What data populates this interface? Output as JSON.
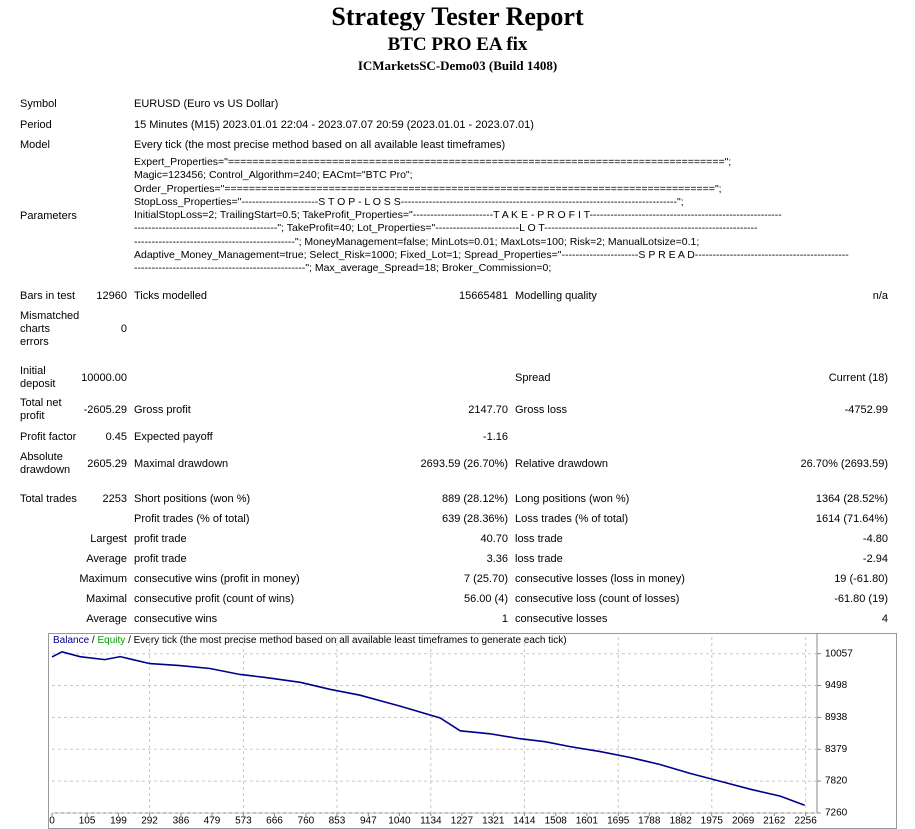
{
  "header": {
    "title": "Strategy Tester Report",
    "subtitle": "BTC PRO EA fix",
    "server": "ICMarketsSC-Demo03 (Build 1408)"
  },
  "info": [
    [
      "Symbol",
      "EURUSD (Euro vs US Dollar)"
    ],
    [
      "Period",
      "15 Minutes (M15) 2023.01.01 22:04 - 2023.07.07 20:59 (2023.01.01 - 2023.07.01)"
    ],
    [
      "Model",
      "Every tick (the most precise method based on all available least timeframes)"
    ]
  ],
  "parameters": {
    "label": "Parameters",
    "lines": [
      "Expert_Properties=\"=================================================================================\";",
      "Magic=123456; Control_Algorithm=240; EACmt=\"BTC Pro\";",
      "Order_Properties=\"================================================================================\";",
      "StopLoss_Properties=\"----------------------S T O P - L O S S-------------------------------------------------------------------------------\";",
      "InitialStopLoss=2; TrailingStart=0.5; TakeProfit_Properties=\"-----------------------T A K E - P R O F I T-------------------------------------------------------",
      "-----------------------------------------\"; TakeProfit=40; Lot_Properties=\"------------------------L O T-------------------------------------------------------------",
      "----------------------------------------------\"; MoneyManagement=false; MinLots=0.01; MaxLots=100; Risk=2; ManualLotsize=0.1;",
      "Adaptive_Money_Management=true; Select_Risk=1000; Fixed_Lot=1; Spread_Properties=\"----------------------S P R E A D--------------------------------------------",
      "-------------------------------------------------\"; Max_average_Spread=18; Broker_Commission=0;"
    ]
  },
  "summary": [
    [
      "Bars in test",
      "12960",
      "Ticks modelled",
      "15665481",
      "Modelling quality",
      "n/a"
    ],
    [
      [
        "Mismatched",
        "charts",
        "errors"
      ],
      "0",
      null,
      null,
      null,
      null
    ],
    [
      [
        "Initial",
        "deposit"
      ],
      "10000.00",
      null,
      null,
      "Spread",
      "Current (18)"
    ],
    [
      [
        "Total net",
        "profit"
      ],
      "-2605.29",
      "Gross profit",
      "2147.70",
      "Gross loss",
      "-4752.99"
    ],
    [
      "Profit factor",
      "0.45",
      "Expected payoff",
      "-1.16",
      null,
      null
    ],
    [
      [
        "Absolute",
        "drawdown"
      ],
      "2605.29",
      "Maximal drawdown",
      "2693.59 (26.70%)",
      "Relative drawdown",
      "26.70% (2693.59)"
    ],
    [
      "Total trades",
      "2253",
      "Short positions (won %)",
      "889 (28.12%)",
      "Long positions (won %)",
      "1364 (28.52%)"
    ],
    [
      null,
      null,
      "Profit trades (% of total)",
      "639 (28.36%)",
      "Loss trades (% of total)",
      "1614 (71.64%)"
    ],
    [
      null,
      "Largest",
      "profit trade",
      "40.70",
      "loss trade",
      "-4.80"
    ],
    [
      null,
      "Average",
      "profit trade",
      "3.36",
      "loss trade",
      "-2.94"
    ],
    [
      null,
      "Maximum",
      "consecutive wins (profit in money)",
      "7 (25.70)",
      "consecutive losses (loss in money)",
      "19 (-61.80)"
    ],
    [
      null,
      "Maximal",
      "consecutive profit (count of wins)",
      "56.00 (4)",
      "consecutive loss (count of losses)",
      "-61.80 (19)"
    ],
    [
      null,
      "Average",
      "consecutive wins",
      "1",
      "consecutive losses",
      "4"
    ]
  ],
  "chart_data": {
    "type": "line",
    "separator": "/",
    "note": "/ Every tick (the most precise method based on all available least timeframes to generate each tick)",
    "equity": {
      "name": "Equity",
      "color": "#00a000"
    },
    "x": [
      0,
      30,
      84,
      158,
      204,
      293,
      383,
      473,
      563,
      638,
      743,
      832,
      922,
      1042,
      1162,
      1222,
      1311,
      1401,
      1476,
      1551,
      1641,
      1731,
      1820,
      1910,
      2000,
      2090,
      2180,
      2253
    ],
    "series": [
      {
        "name": "Balance",
        "color": "#00008b",
        "values": [
          10000,
          10090,
          10005,
          9953,
          10005,
          9883,
          9849,
          9797,
          9692,
          9640,
          9554,
          9432,
          9328,
          9137,
          8929,
          8703,
          8651,
          8564,
          8512,
          8425,
          8338,
          8234,
          8112,
          7956,
          7817,
          7678,
          7556,
          7395
        ]
      }
    ],
    "xlim": [
      0,
      2290
    ],
    "xticks": [
      0,
      105,
      199,
      292,
      386,
      479,
      573,
      666,
      760,
      853,
      947,
      1040,
      1134,
      1227,
      1321,
      1414,
      1508,
      1601,
      1695,
      1788,
      1882,
      1975,
      2069,
      2162,
      2256
    ],
    "ylim": [
      7260,
      10350
    ],
    "yticks": [
      10057,
      9498,
      8938,
      8379,
      7820,
      7260
    ],
    "grid": true
  }
}
